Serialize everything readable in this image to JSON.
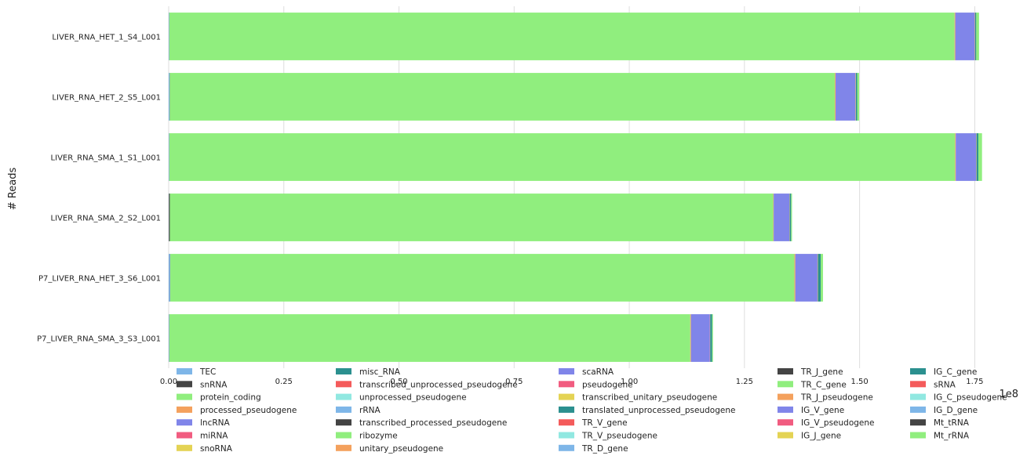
{
  "chart_data": {
    "type": "bar",
    "orientation": "horizontal",
    "stacked": true,
    "ylabel": "# Reads",
    "x_offset_label": "1e8",
    "xlim": [
      0,
      1.78
    ],
    "xticks": [
      0.0,
      0.25,
      0.5,
      0.75,
      1.0,
      1.25,
      1.5,
      1.75
    ],
    "xtick_labels": [
      "0.00",
      "0.25",
      "0.50",
      "0.75",
      "1.00",
      "1.25",
      "1.50",
      "1.75"
    ],
    "grid": true,
    "legend_position": "bottom",
    "categories": [
      "LIVER_RNA_HET_1_S4_L001",
      "LIVER_RNA_HET_2_S5_L001",
      "LIVER_RNA_SMA_1_S1_L001",
      "LIVER_RNA_SMA_2_S2_L001",
      "P7_LIVER_RNA_HET_3_S6_L001",
      "P7_LIVER_RNA_SMA_3_S3_L001"
    ],
    "series": [
      {
        "name": "TEC",
        "color": "#7eb6e8",
        "values": [
          0.001,
          0.002,
          0.001,
          0.0005,
          0.003,
          0.001
        ]
      },
      {
        "name": "snRNA",
        "color": "#444444",
        "values": [
          0.0003,
          0.0004,
          0.0003,
          0.002,
          0.0005,
          0.0004
        ]
      },
      {
        "name": "protein_coding",
        "color": "#90ee7e",
        "values": [
          1.705,
          1.444,
          1.706,
          1.31,
          1.355,
          1.131
        ]
      },
      {
        "name": "processed_pseudogene",
        "color": "#f4a15d",
        "values": [
          0.0015,
          0.0015,
          0.0015,
          0.001,
          0.002,
          0.0015
        ]
      },
      {
        "name": "lncRNA",
        "color": "#8085e9",
        "values": [
          0.042,
          0.043,
          0.044,
          0.034,
          0.048,
          0.041
        ]
      },
      {
        "name": "miRNA",
        "color": "#f15c80",
        "values": [
          0.0005,
          0.0005,
          0.0005,
          0.0004,
          0.0005,
          0.0004
        ]
      },
      {
        "name": "snoRNA",
        "color": "#e4d354",
        "values": [
          0.0005,
          0.0005,
          0.0005,
          0.0004,
          0.0005,
          0.0004
        ]
      },
      {
        "name": "misc_RNA",
        "color": "#2b908f",
        "values": [
          0.0025,
          0.003,
          0.004,
          0.003,
          0.006,
          0.004
        ]
      },
      {
        "name": "Mt_rRNA",
        "color": "#90ee7e",
        "values": [
          0.006,
          0.004,
          0.008,
          0.002,
          0.005,
          0.002
        ]
      }
    ],
    "legend": {
      "columns": [
        [
          "TEC",
          "snRNA",
          "protein_coding",
          "processed_pseudogene",
          "lncRNA",
          "miRNA",
          "snoRNA"
        ],
        [
          "misc_RNA",
          "transcribed_unprocessed_pseudogene",
          "unprocessed_pseudogene",
          "rRNA",
          "transcribed_processed_pseudogene",
          "ribozyme",
          "unitary_pseudogene"
        ],
        [
          "scaRNA",
          "pseudogene",
          "transcribed_unitary_pseudogene",
          "translated_unprocessed_pseudogene",
          "TR_V_gene",
          "TR_V_pseudogene",
          "TR_D_gene"
        ],
        [
          "TR_J_gene",
          "TR_C_gene",
          "TR_J_pseudogene",
          "IG_V_gene",
          "IG_V_pseudogene",
          "IG_J_gene"
        ],
        [
          "IG_C_gene",
          "sRNA",
          "IG_C_pseudogene",
          "IG_D_gene",
          "Mt_tRNA",
          "Mt_rRNA"
        ]
      ],
      "palette": [
        "#7eb6e8",
        "#444444",
        "#90ee7e",
        "#f4a15d",
        "#8085e9",
        "#f15c80",
        "#e4d354",
        "#2b908f",
        "#f45b5b",
        "#91e8e1"
      ]
    }
  }
}
